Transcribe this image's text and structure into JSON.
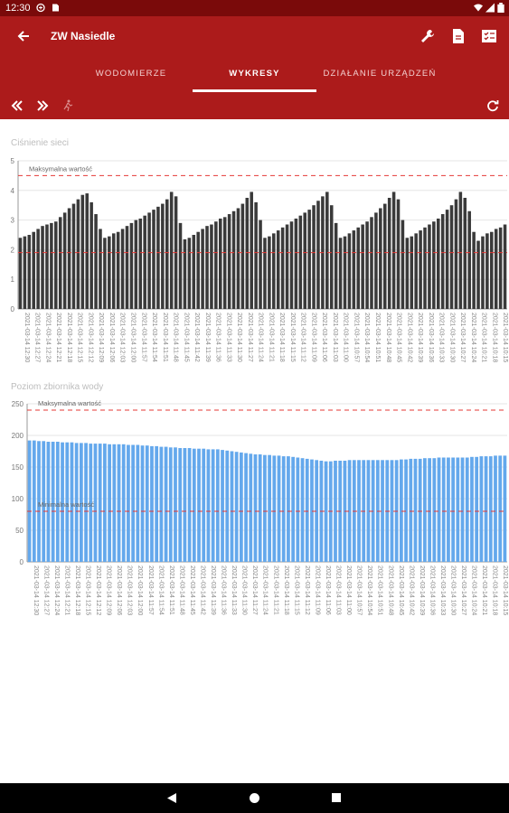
{
  "status_bar": {
    "time": "12:30",
    "icons": [
      "signal-icon",
      "wifi-icon",
      "battery-icon"
    ]
  },
  "app_bar": {
    "title": "ZW Nasiedle",
    "background": "#ac1b1b"
  },
  "tabs": [
    {
      "label": "WODOMIERZE",
      "active": false
    },
    {
      "label": "WYKRESY",
      "active": true
    },
    {
      "label": "DZIAŁANIE URZĄDZEŃ",
      "active": false
    }
  ],
  "chart_data": [
    {
      "type": "bar",
      "title": "Ciśnienie sieci",
      "ylim": [
        0,
        5
      ],
      "yticks": [
        0,
        1,
        2,
        3,
        4,
        5
      ],
      "grid": true,
      "bar_color": "#3a3a3a",
      "annotations": [
        {
          "label": "Maksymalna wartość",
          "value": 4.5,
          "color": "#e53935"
        },
        {
          "label": "",
          "value": 1.9,
          "color": "#e53935"
        }
      ],
      "values": [
        2.4,
        2.45,
        2.5,
        2.6,
        2.7,
        2.8,
        2.85,
        2.9,
        2.95,
        3.1,
        3.25,
        3.4,
        3.55,
        3.7,
        3.85,
        3.9,
        3.6,
        3.2,
        2.7,
        2.4,
        2.45,
        2.55,
        2.6,
        2.7,
        2.8,
        2.9,
        3.0,
        3.05,
        3.15,
        3.25,
        3.35,
        3.45,
        3.55,
        3.7,
        3.95,
        3.8,
        2.9,
        2.35,
        2.4,
        2.5,
        2.6,
        2.7,
        2.8,
        2.85,
        2.95,
        3.05,
        3.1,
        3.2,
        3.3,
        3.4,
        3.55,
        3.75,
        3.95,
        3.6,
        3.0,
        2.4,
        2.45,
        2.55,
        2.65,
        2.75,
        2.85,
        2.95,
        3.05,
        3.15,
        3.25,
        3.35,
        3.5,
        3.65,
        3.8,
        3.95,
        3.5,
        2.9,
        2.4,
        2.45,
        2.55,
        2.65,
        2.75,
        2.85,
        2.95,
        3.1,
        3.25,
        3.4,
        3.55,
        3.75,
        3.95,
        3.7,
        3.0,
        2.4,
        2.45,
        2.55,
        2.65,
        2.75,
        2.85,
        2.95,
        3.05,
        3.2,
        3.35,
        3.5,
        3.7,
        3.95,
        3.75,
        3.3,
        2.6,
        2.3,
        2.45,
        2.55,
        2.6,
        2.7,
        2.75,
        2.85
      ],
      "x_labels": [
        "2021-03-14 12:30",
        "2021-03-14 12:27",
        "2021-03-14 12:24",
        "2021-03-14 12:21",
        "2021-03-14 12:18",
        "2021-03-14 12:15",
        "2021-03-14 12:12",
        "2021-03-14 12:09",
        "2021-03-14 12:06",
        "2021-03-14 12:03",
        "2021-03-14 12:00",
        "2021-03-14 11:57",
        "2021-03-14 11:54",
        "2021-03-14 11:51",
        "2021-03-14 11:48",
        "2021-03-14 11:45",
        "2021-03-14 11:42",
        "2021-03-14 11:39",
        "2021-03-14 11:36",
        "2021-03-14 11:33",
        "2021-03-14 11:30",
        "2021-03-14 11:27",
        "2021-03-14 11:24",
        "2021-03-14 11:21",
        "2021-03-14 11:18",
        "2021-03-14 11:15",
        "2021-03-14 11:12",
        "2021-03-14 11:09",
        "2021-03-14 11:06",
        "2021-03-14 11:03",
        "2021-03-14 11:00",
        "2021-03-14 10:57",
        "2021-03-14 10:54",
        "2021-03-14 10:51",
        "2021-03-14 10:48",
        "2021-03-14 10:45",
        "2021-03-14 10:42",
        "2021-03-14 10:39",
        "2021-03-14 10:36",
        "2021-03-14 10:33",
        "2021-03-14 10:30",
        "2021-03-14 10:27",
        "2021-03-14 10:24",
        "2021-03-14 10:21",
        "2021-03-14 10:18",
        "2021-03-14 10:15"
      ]
    },
    {
      "type": "bar",
      "title": "Poziom zbiornika wody",
      "ylim": [
        0,
        250
      ],
      "yticks": [
        0,
        50,
        100,
        150,
        200,
        250
      ],
      "grid": true,
      "bar_color": "#64a8ec",
      "annotations": [
        {
          "label": "Maksymalna wartość",
          "value": 240,
          "color": "#e53935"
        },
        {
          "label": "Minimalna wartość",
          "value": 80,
          "color": "#e53935"
        }
      ],
      "values": [
        192,
        192,
        191,
        191,
        190,
        190,
        190,
        189,
        189,
        189,
        188,
        188,
        188,
        187,
        187,
        187,
        187,
        186,
        186,
        186,
        186,
        185,
        185,
        185,
        184,
        184,
        183,
        183,
        182,
        182,
        181,
        181,
        180,
        180,
        180,
        179,
        179,
        179,
        178,
        178,
        178,
        177,
        176,
        175,
        174,
        173,
        172,
        171,
        170,
        170,
        169,
        169,
        168,
        168,
        167,
        167,
        166,
        165,
        164,
        163,
        162,
        161,
        160,
        159,
        159,
        160,
        160,
        160,
        161,
        161,
        161,
        161,
        161,
        161,
        161,
        161,
        161,
        161,
        161,
        162,
        162,
        163,
        163,
        163,
        164,
        164,
        164,
        165,
        165,
        165,
        165,
        165,
        165,
        165,
        166,
        166,
        167,
        167,
        167,
        168,
        168,
        168
      ],
      "x_labels": [
        "2021-03-14 12:30",
        "2021-03-14 12:27",
        "2021-03-14 12:24",
        "2021-03-14 12:21",
        "2021-03-14 12:18",
        "2021-03-14 12:15",
        "2021-03-14 12:12",
        "2021-03-14 12:09",
        "2021-03-14 12:06",
        "2021-03-14 12:03",
        "2021-03-14 12:00",
        "2021-03-14 11:57",
        "2021-03-14 11:54",
        "2021-03-14 11:51",
        "2021-03-14 11:48",
        "2021-03-14 11:45",
        "2021-03-14 11:42",
        "2021-03-14 11:39",
        "2021-03-14 11:36",
        "2021-03-14 11:33",
        "2021-03-14 11:30",
        "2021-03-14 11:27",
        "2021-03-14 11:24",
        "2021-03-14 11:21",
        "2021-03-14 11:18",
        "2021-03-14 11:15",
        "2021-03-14 11:12",
        "2021-03-14 11:09",
        "2021-03-14 11:06",
        "2021-03-14 11:03",
        "2021-03-14 11:00",
        "2021-03-14 10:57",
        "2021-03-14 10:54",
        "2021-03-14 10:51",
        "2021-03-14 10:48",
        "2021-03-14 10:45",
        "2021-03-14 10:42",
        "2021-03-14 10:39",
        "2021-03-14 10:36",
        "2021-03-14 10:33",
        "2021-03-14 10:30",
        "2021-03-14 10:27",
        "2021-03-14 10:24",
        "2021-03-14 10:21",
        "2021-03-14 10:18",
        "2021-03-14 10:15"
      ]
    }
  ]
}
